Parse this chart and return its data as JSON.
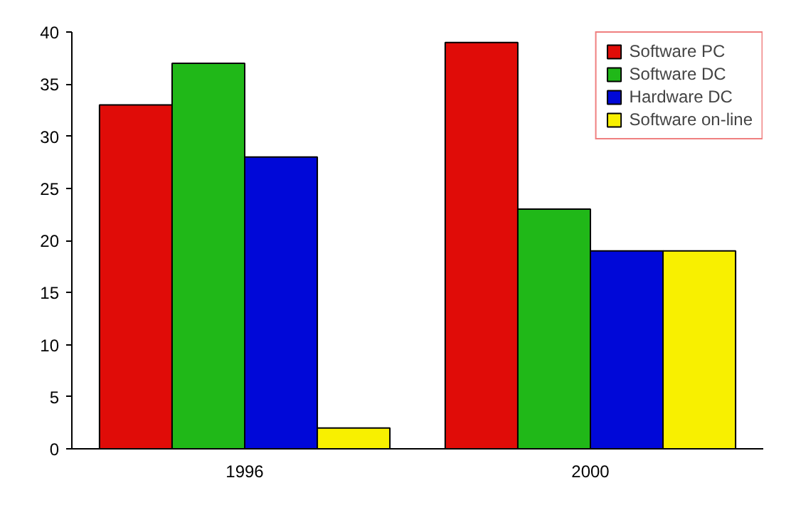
{
  "chart_data": {
    "type": "bar",
    "categories": [
      "1996",
      "2000"
    ],
    "series": [
      {
        "name": "Software PC",
        "color": "#e00c08",
        "values": [
          33,
          39
        ]
      },
      {
        "name": "Software DC",
        "color": "#20b818",
        "values": [
          37,
          23
        ]
      },
      {
        "name": "Hardware DC",
        "color": "#0008d8",
        "values": [
          28,
          19
        ]
      },
      {
        "name": "Software on-line",
        "color": "#f8f000",
        "values": [
          2,
          19
        ]
      }
    ],
    "ylim": [
      0,
      40
    ],
    "yticks": [
      0,
      5,
      10,
      15,
      20,
      25,
      30,
      35,
      40
    ],
    "grid": false,
    "legend": "top right"
  }
}
